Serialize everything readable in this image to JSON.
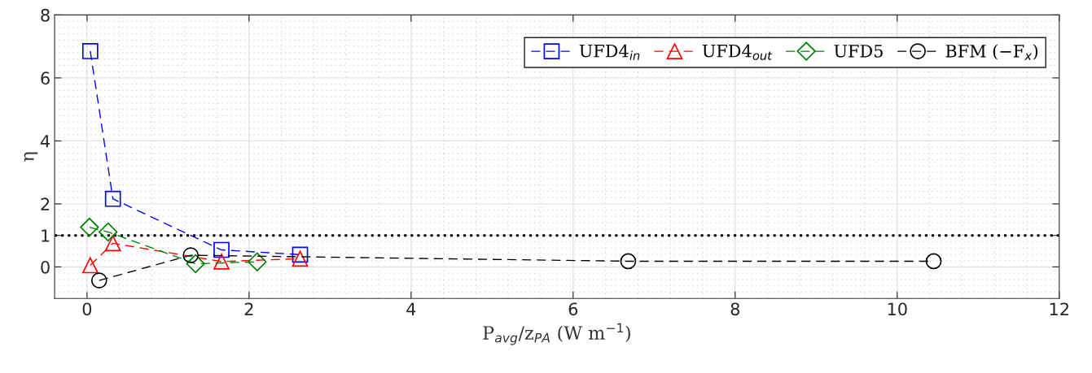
{
  "chart_data": {
    "type": "line",
    "xlabel": "P$_{avg}$/z$_{PA}$ (W m$^{−1}$)",
    "ylabel": "η",
    "xlim": [
      -0.4,
      12
    ],
    "xticks": [
      0,
      2,
      4,
      6,
      8,
      10,
      12
    ],
    "ylim": [
      -1,
      8
    ],
    "yticks": [
      0,
      1,
      2,
      4,
      6,
      8
    ],
    "grid": true,
    "legend": "top right",
    "line_style": "dashed",
    "series": [
      {
        "name": "UFD4$_{in}$",
        "color": "#0000ff",
        "marker": "square",
        "x": [
          0.04,
          0.32,
          1.66,
          2.63
        ],
        "values": [
          6.85,
          2.16,
          0.54,
          0.39
        ]
      },
      {
        "name": "UFD4$_{out}$",
        "color": "#ff0000",
        "marker": "triangle",
        "x": [
          0.04,
          0.32,
          1.66,
          2.63
        ],
        "values": [
          0.05,
          0.75,
          0.17,
          0.26
        ]
      },
      {
        "name": "UFD5",
        "color": "#008000",
        "marker": "diamond",
        "x": [
          0.03,
          0.26,
          1.34,
          2.1
        ],
        "values": [
          1.26,
          1.11,
          0.1,
          0.16
        ]
      },
      {
        "name": "BFM (−F$_{x}$)",
        "color": "#000000",
        "marker": "circle",
        "x": [
          0.15,
          1.28,
          6.68,
          10.45
        ],
        "values": [
          -0.43,
          0.37,
          0.18,
          0.18
        ]
      }
    ],
    "ref_lines": [
      {
        "axis": "y",
        "value": 1,
        "color": "#000000",
        "line_style": "dotted"
      }
    ]
  }
}
